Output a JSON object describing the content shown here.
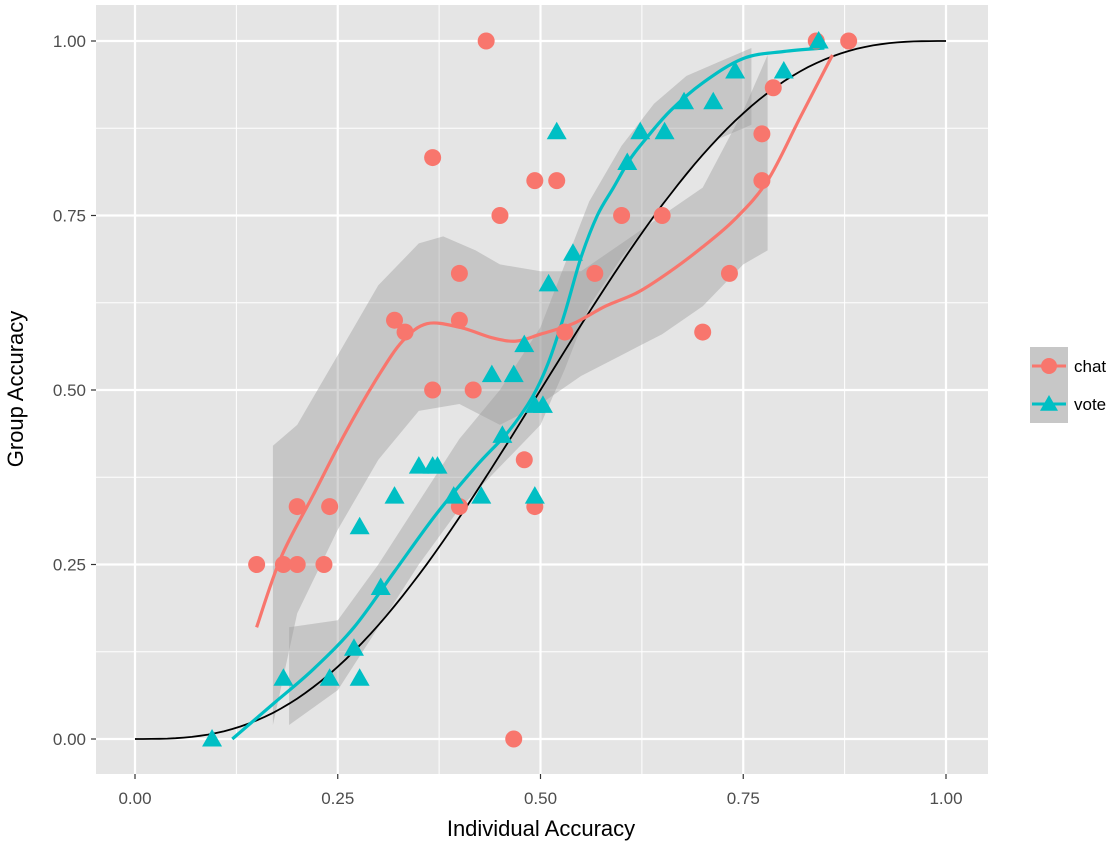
{
  "chart_data": {
    "type": "scatter",
    "title": "",
    "xlabel": "Individual Accuracy",
    "ylabel": "Group Accuracy",
    "xlim": [
      -0.05,
      1.05
    ],
    "ylim": [
      -0.05,
      1.05
    ],
    "xticks": [
      0,
      0.25,
      0.5,
      0.75,
      1
    ],
    "yticks": [
      0,
      0.25,
      0.5,
      0.75,
      1
    ],
    "xtick_labels": [
      "0.00",
      "0.25",
      "0.50",
      "0.75",
      "1.00"
    ],
    "ytick_labels": [
      "0.00",
      "0.25",
      "0.50",
      "0.75",
      "1.00"
    ],
    "grid": true,
    "legend_position": "right",
    "colors": {
      "panel": "#e5e5e5",
      "grid": "#ffffff",
      "band": "#999999",
      "chat": "#f8766d",
      "vote": "#00bfc4",
      "reference": "#000000"
    },
    "series": [
      {
        "name": "chat",
        "marker": "circle",
        "points": [
          [
            0.15,
            0.25
          ],
          [
            0.183,
            0.25
          ],
          [
            0.2,
            0.333
          ],
          [
            0.2,
            0.25
          ],
          [
            0.233,
            0.25
          ],
          [
            0.24,
            0.333
          ],
          [
            0.32,
            0.6
          ],
          [
            0.333,
            0.583
          ],
          [
            0.367,
            0.833
          ],
          [
            0.367,
            0.5
          ],
          [
            0.4,
            0.667
          ],
          [
            0.4,
            0.6
          ],
          [
            0.4,
            0.333
          ],
          [
            0.417,
            0.5
          ],
          [
            0.433,
            1.0
          ],
          [
            0.45,
            0.75
          ],
          [
            0.467,
            0.0
          ],
          [
            0.48,
            0.4
          ],
          [
            0.493,
            0.8
          ],
          [
            0.493,
            0.333
          ],
          [
            0.52,
            0.8
          ],
          [
            0.53,
            0.583
          ],
          [
            0.567,
            0.667
          ],
          [
            0.6,
            0.75
          ],
          [
            0.65,
            0.75
          ],
          [
            0.7,
            0.583
          ],
          [
            0.733,
            0.667
          ],
          [
            0.773,
            0.867
          ],
          [
            0.773,
            0.8
          ],
          [
            0.787,
            0.933
          ],
          [
            0.84,
            1.0
          ],
          [
            0.88,
            1.0
          ]
        ],
        "smooth": [
          [
            0.15,
            0.16
          ],
          [
            0.18,
            0.26
          ],
          [
            0.22,
            0.35
          ],
          [
            0.26,
            0.44
          ],
          [
            0.3,
            0.52
          ],
          [
            0.33,
            0.57
          ],
          [
            0.36,
            0.595
          ],
          [
            0.4,
            0.59
          ],
          [
            0.44,
            0.575
          ],
          [
            0.47,
            0.57
          ],
          [
            0.5,
            0.58
          ],
          [
            0.54,
            0.595
          ],
          [
            0.58,
            0.62
          ],
          [
            0.62,
            0.64
          ],
          [
            0.66,
            0.67
          ],
          [
            0.7,
            0.705
          ],
          [
            0.74,
            0.745
          ],
          [
            0.78,
            0.8
          ],
          [
            0.82,
            0.89
          ],
          [
            0.86,
            0.98
          ]
        ],
        "band_lower": [
          [
            0.17,
            0.02
          ],
          [
            0.2,
            0.18
          ],
          [
            0.25,
            0.3
          ],
          [
            0.3,
            0.4
          ],
          [
            0.35,
            0.47
          ],
          [
            0.4,
            0.48
          ],
          [
            0.45,
            0.45
          ],
          [
            0.5,
            0.48
          ],
          [
            0.55,
            0.52
          ],
          [
            0.6,
            0.55
          ],
          [
            0.65,
            0.58
          ],
          [
            0.7,
            0.62
          ],
          [
            0.75,
            0.68
          ],
          [
            0.78,
            0.7
          ]
        ],
        "band_upper": [
          [
            0.17,
            0.42
          ],
          [
            0.2,
            0.45
          ],
          [
            0.25,
            0.55
          ],
          [
            0.3,
            0.65
          ],
          [
            0.35,
            0.71
          ],
          [
            0.38,
            0.72
          ],
          [
            0.42,
            0.7
          ],
          [
            0.45,
            0.68
          ],
          [
            0.5,
            0.67
          ],
          [
            0.55,
            0.67
          ],
          [
            0.6,
            0.71
          ],
          [
            0.65,
            0.75
          ],
          [
            0.7,
            0.79
          ],
          [
            0.75,
            0.9
          ],
          [
            0.78,
            0.98
          ]
        ]
      },
      {
        "name": "vote",
        "marker": "triangle",
        "points": [
          [
            0.095,
            0.0
          ],
          [
            0.183,
            0.087
          ],
          [
            0.24,
            0.087
          ],
          [
            0.27,
            0.13
          ],
          [
            0.277,
            0.304
          ],
          [
            0.277,
            0.087
          ],
          [
            0.303,
            0.217
          ],
          [
            0.32,
            0.348
          ],
          [
            0.35,
            0.391
          ],
          [
            0.367,
            0.391
          ],
          [
            0.373,
            0.391
          ],
          [
            0.393,
            0.348
          ],
          [
            0.427,
            0.348
          ],
          [
            0.44,
            0.522
          ],
          [
            0.453,
            0.435
          ],
          [
            0.467,
            0.522
          ],
          [
            0.48,
            0.565
          ],
          [
            0.493,
            0.348
          ],
          [
            0.493,
            0.478
          ],
          [
            0.503,
            0.478
          ],
          [
            0.51,
            0.652
          ],
          [
            0.52,
            0.87
          ],
          [
            0.54,
            0.696
          ],
          [
            0.607,
            0.826
          ],
          [
            0.623,
            0.87
          ],
          [
            0.653,
            0.87
          ],
          [
            0.677,
            0.913
          ],
          [
            0.713,
            0.913
          ],
          [
            0.74,
            0.957
          ],
          [
            0.8,
            0.957
          ],
          [
            0.843,
            1.0
          ]
        ],
        "smooth": [
          [
            0.12,
            0.0
          ],
          [
            0.17,
            0.05
          ],
          [
            0.22,
            0.1
          ],
          [
            0.27,
            0.16
          ],
          [
            0.32,
            0.24
          ],
          [
            0.37,
            0.32
          ],
          [
            0.42,
            0.39
          ],
          [
            0.46,
            0.44
          ],
          [
            0.49,
            0.49
          ],
          [
            0.51,
            0.54
          ],
          [
            0.53,
            0.61
          ],
          [
            0.55,
            0.69
          ],
          [
            0.57,
            0.75
          ],
          [
            0.59,
            0.79
          ],
          [
            0.61,
            0.83
          ],
          [
            0.63,
            0.86
          ],
          [
            0.66,
            0.9
          ],
          [
            0.7,
            0.94
          ],
          [
            0.75,
            0.975
          ],
          [
            0.8,
            0.985
          ],
          [
            0.85,
            0.99
          ]
        ],
        "band_lower": [
          [
            0.19,
            0.02
          ],
          [
            0.25,
            0.07
          ],
          [
            0.3,
            0.16
          ],
          [
            0.35,
            0.25
          ],
          [
            0.4,
            0.33
          ],
          [
            0.45,
            0.39
          ],
          [
            0.5,
            0.45
          ],
          [
            0.53,
            0.53
          ],
          [
            0.56,
            0.62
          ],
          [
            0.6,
            0.69
          ],
          [
            0.64,
            0.75
          ],
          [
            0.68,
            0.81
          ],
          [
            0.72,
            0.86
          ],
          [
            0.76,
            0.88
          ]
        ],
        "band_upper": [
          [
            0.19,
            0.16
          ],
          [
            0.25,
            0.17
          ],
          [
            0.3,
            0.25
          ],
          [
            0.35,
            0.34
          ],
          [
            0.4,
            0.43
          ],
          [
            0.45,
            0.5
          ],
          [
            0.5,
            0.59
          ],
          [
            0.53,
            0.68
          ],
          [
            0.56,
            0.77
          ],
          [
            0.6,
            0.85
          ],
          [
            0.64,
            0.91
          ],
          [
            0.68,
            0.95
          ],
          [
            0.72,
            0.97
          ],
          [
            0.76,
            0.99
          ]
        ]
      }
    ],
    "reference_curve": "cumulative majority curve from (0,0) to (1,1)"
  }
}
